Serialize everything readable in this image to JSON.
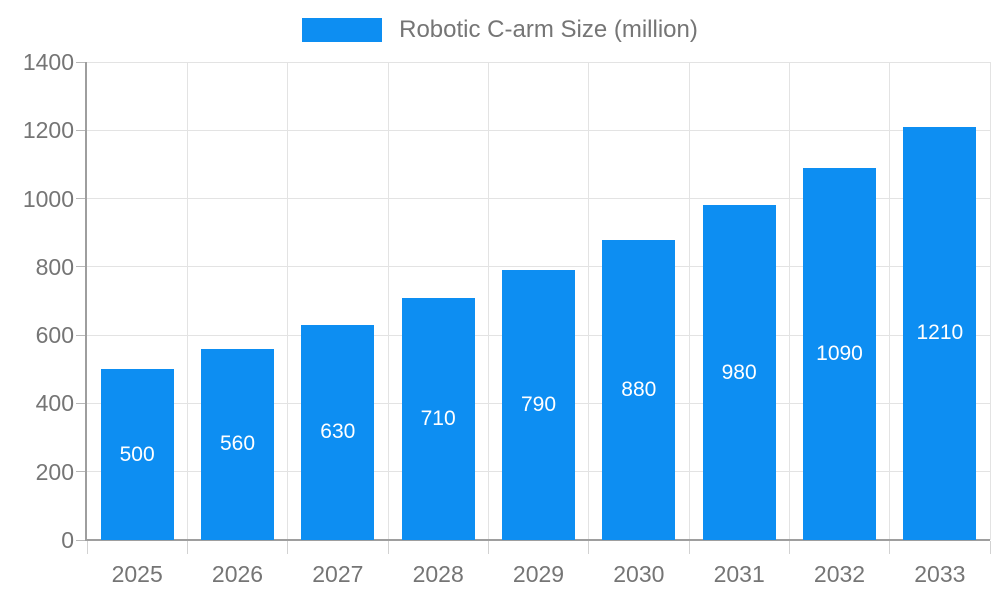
{
  "chart_data": {
    "type": "bar",
    "title": "Robotic C-arm Size (million)",
    "categories": [
      "2025",
      "2026",
      "2027",
      "2028",
      "2029",
      "2030",
      "2031",
      "2032",
      "2033"
    ],
    "values": [
      500,
      560,
      630,
      710,
      790,
      880,
      980,
      1090,
      1210
    ],
    "xlabel": "",
    "ylabel": "",
    "ylim": [
      0,
      1400
    ],
    "yticks": [
      0,
      200,
      400,
      600,
      800,
      1000,
      1200,
      1400
    ],
    "grid": true,
    "legend_position": "top-center",
    "value_labels": "inside-center",
    "colors": {
      "bar": "#0d8ef2",
      "axis_line": "#9e9e9e",
      "gridline": "#e3e3e3",
      "y_tick": "#b8b8b8",
      "x_tick": "#d2d2d2",
      "text": "#757575",
      "value_label_text": "#ffffff",
      "background": "#ffffff"
    }
  }
}
